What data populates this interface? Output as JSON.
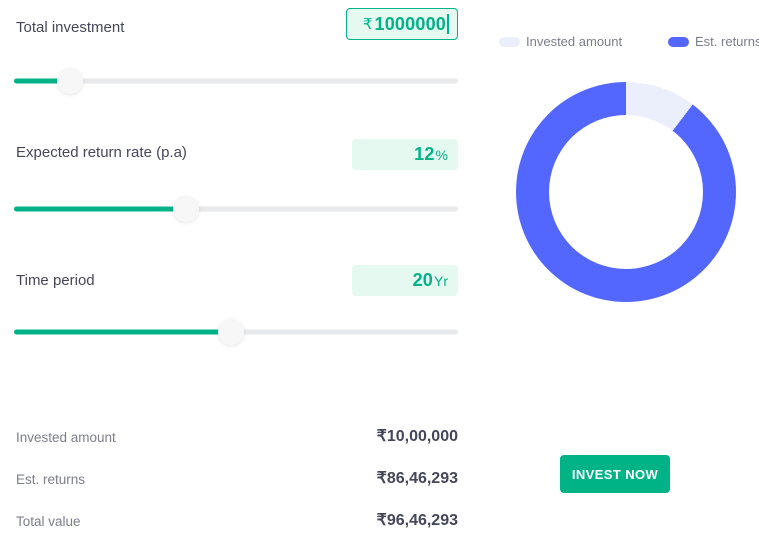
{
  "colors": {
    "accent_green": "#00b386",
    "value_box_bg": "#e5f9f1",
    "text_dark": "#44475b",
    "text_gray": "#7c7e8c",
    "slider_track": "#e8e9eb",
    "slider_thumb": "#f7f7f7",
    "chart_blue": "#5367ff",
    "chart_lavender": "#ebeefb",
    "button_green": "#00b386"
  },
  "calculator": {
    "fields": [
      {
        "label": "Total investment",
        "prefix": "₹",
        "value": "1000000",
        "unit": "",
        "slider_percent": 12.6
      },
      {
        "label": "Expected return rate (p.a)",
        "prefix": "",
        "value": "12",
        "unit": "%",
        "slider_percent": 38.7
      },
      {
        "label": "Time period",
        "prefix": "",
        "value": "20",
        "unit": "Yr",
        "slider_percent": 48.9
      }
    ],
    "summary": [
      {
        "label": "Invested amount",
        "value": "₹10,00,000"
      },
      {
        "label": "Est. returns",
        "value": "₹86,46,293"
      },
      {
        "label": "Total value",
        "value": "₹96,46,293"
      }
    ],
    "invest_button_label": "INVEST NOW"
  },
  "legend": {
    "items": [
      {
        "label": "Invested amount",
        "color": "#ebeefb"
      },
      {
        "label": "Est. returns",
        "color": "#5367ff"
      }
    ]
  },
  "chart_data": {
    "type": "pie",
    "subtype": "donut",
    "title": "",
    "slices": [
      {
        "label": "Invested amount",
        "value": 1000000,
        "percent": 10.37,
        "color": "#ebeefb"
      },
      {
        "label": "Est. returns",
        "value": 8646293,
        "percent": 89.63,
        "color": "#5367ff"
      }
    ],
    "start_angle_deg": 0,
    "direction": "clockwise",
    "legend_position": "top"
  }
}
